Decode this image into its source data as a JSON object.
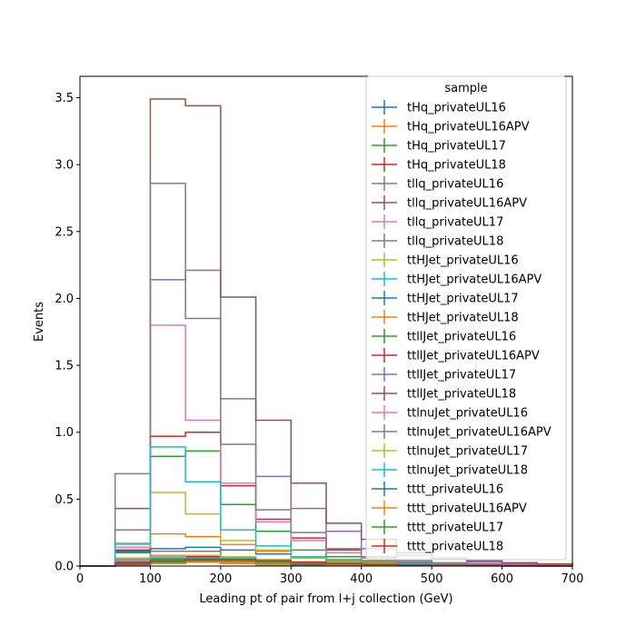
{
  "chart_data": {
    "type": "step-histogram",
    "xlabel": "Leading pt of pair from l+j collection (GeV)",
    "ylabel": "Events",
    "xlim": [
      0,
      700
    ],
    "ylim": [
      0,
      3.66
    ],
    "xticks": [
      0,
      100,
      200,
      300,
      400,
      500,
      600,
      700
    ],
    "yticks": [
      "0.0",
      "0.5",
      "1.0",
      "1.5",
      "2.0",
      "2.5",
      "3.0",
      "3.5"
    ],
    "grid": false,
    "legend": {
      "title": "sample",
      "placement": "top-right"
    },
    "bin_edges": [
      0,
      50,
      100,
      150,
      200,
      250,
      300,
      350,
      400,
      450,
      500,
      550,
      600,
      650,
      700
    ],
    "series": [
      {
        "name": "tHq_privateUL16",
        "color": "#1f77b4",
        "values": [
          0,
          0.02,
          0.03,
          0.03,
          0.02,
          0.01,
          0.01,
          0.005,
          0.004,
          0.003,
          0.002,
          0.001,
          0.001,
          0.001
        ]
      },
      {
        "name": "tHq_privateUL16APV",
        "color": "#ff7f0e",
        "values": [
          0,
          0.02,
          0.03,
          0.03,
          0.02,
          0.01,
          0.01,
          0.005,
          0.004,
          0.003,
          0.002,
          0.001,
          0.001,
          0.001
        ]
      },
      {
        "name": "tHq_privateUL17",
        "color": "#2ca02c",
        "values": [
          0,
          0.03,
          0.05,
          0.05,
          0.03,
          0.02,
          0.01,
          0.008,
          0.005,
          0.004,
          0.003,
          0.002,
          0.001,
          0.001
        ]
      },
      {
        "name": "tHq_privateUL18",
        "color": "#d62728",
        "values": [
          0,
          0.04,
          0.07,
          0.07,
          0.04,
          0.03,
          0.02,
          0.01,
          0.007,
          0.005,
          0.004,
          0.003,
          0.002,
          0.001
        ]
      },
      {
        "name": "tllq_privateUL16",
        "color": "#9467bd",
        "values": [
          0,
          0.03,
          0.06,
          0.06,
          0.04,
          0.02,
          0.01,
          0.008,
          0.005,
          0.004,
          0.003,
          0.002,
          0.001,
          0.001
        ]
      },
      {
        "name": "tllq_privateUL16APV",
        "color": "#8c564b",
        "values": [
          0,
          0.03,
          0.06,
          0.06,
          0.04,
          0.02,
          0.01,
          0.008,
          0.005,
          0.004,
          0.003,
          0.002,
          0.001,
          0.001
        ]
      },
      {
        "name": "tllq_privateUL17",
        "color": "#e377c2",
        "values": [
          0,
          0.04,
          0.08,
          0.08,
          0.05,
          0.03,
          0.02,
          0.01,
          0.006,
          0.004,
          0.003,
          0.002,
          0.001,
          0.001
        ]
      },
      {
        "name": "tllq_privateUL18",
        "color": "#7f7f7f",
        "values": [
          0,
          0.05,
          0.11,
          0.11,
          0.07,
          0.04,
          0.02,
          0.01,
          0.008,
          0.006,
          0.004,
          0.003,
          0.002,
          0.001
        ]
      },
      {
        "name": "ttHJet_privateUL16",
        "color": "#bcbd22",
        "values": [
          0,
          0.06,
          0.07,
          0.08,
          0.07,
          0.05,
          0.03,
          0.02,
          0.015,
          0.01,
          0.007,
          0.005,
          0.004,
          0.003
        ]
      },
      {
        "name": "ttHJet_privateUL16APV",
        "color": "#17becf",
        "values": [
          0,
          0.05,
          0.06,
          0.06,
          0.06,
          0.04,
          0.03,
          0.02,
          0.012,
          0.008,
          0.006,
          0.004,
          0.003,
          0.002
        ]
      },
      {
        "name": "ttHJet_privateUL17",
        "color": "#1f77b4",
        "values": [
          0,
          0.11,
          0.13,
          0.14,
          0.12,
          0.09,
          0.06,
          0.04,
          0.025,
          0.016,
          0.011,
          0.008,
          0.005,
          0.004
        ]
      },
      {
        "name": "ttHJet_privateUL18",
        "color": "#ff7f0e",
        "values": [
          0,
          0.14,
          0.24,
          0.22,
          0.16,
          0.11,
          0.07,
          0.05,
          0.03,
          0.02,
          0.014,
          0.01,
          0.007,
          0.005
        ]
      },
      {
        "name": "ttllJet_privateUL16",
        "color": "#2ca02c",
        "values": [
          0,
          0.1,
          0.82,
          0.86,
          0.46,
          0.26,
          0.12,
          0.07,
          0.04,
          0.025,
          0.016,
          0.01,
          0.007,
          0.005
        ]
      },
      {
        "name": "ttllJet_privateUL16APV",
        "color": "#d62728",
        "values": [
          0,
          0.12,
          0.97,
          1.0,
          0.6,
          0.35,
          0.21,
          0.12,
          0.06,
          0.035,
          0.022,
          0.014,
          0.009,
          0.006
        ]
      },
      {
        "name": "ttllJet_privateUL17",
        "color": "#9467bd",
        "values": [
          0,
          0.27,
          2.14,
          2.21,
          1.25,
          0.67,
          0.43,
          0.26,
          0.13,
          0.08,
          0.05,
          0.03,
          0.02,
          0.013
        ]
      },
      {
        "name": "ttllJet_privateUL18",
        "color": "#8c564b",
        "values": [
          0,
          0.43,
          3.49,
          3.44,
          2.01,
          1.09,
          0.62,
          0.32,
          0.2,
          0.1,
          0.06,
          0.04,
          0.025,
          0.016
        ]
      },
      {
        "name": "ttlnuJet_privateUL16",
        "color": "#e377c2",
        "values": [
          0,
          0.14,
          1.8,
          1.09,
          0.62,
          0.33,
          0.19,
          0.1,
          0.06,
          0.035,
          0.022,
          0.014,
          0.009,
          0.006
        ]
      },
      {
        "name": "ttlnuJet_privateUL16APV",
        "color": "#7f7f7f",
        "values": [
          0,
          0.69,
          2.86,
          1.85,
          0.91,
          0.42,
          0.25,
          0.13,
          0.07,
          0.04,
          0.025,
          0.016,
          0.01,
          0.007
        ]
      },
      {
        "name": "ttlnuJet_privateUL17",
        "color": "#bcbd22",
        "values": [
          0,
          0.16,
          0.55,
          0.39,
          0.19,
          0.12,
          0.06,
          0.03,
          0.02,
          0.012,
          0.008,
          0.005,
          0.003,
          0.002
        ]
      },
      {
        "name": "ttlnuJet_privateUL18",
        "color": "#17becf",
        "values": [
          0,
          0.17,
          0.89,
          0.63,
          0.27,
          0.15,
          0.07,
          0.04,
          0.025,
          0.015,
          0.01,
          0.006,
          0.004,
          0.003
        ]
      },
      {
        "name": "tttt_privateUL16",
        "color": "#1f77b4",
        "values": [
          0,
          0.01,
          0.02,
          0.03,
          0.03,
          0.02,
          0.02,
          0.01,
          0.008,
          0.005,
          0.004,
          0.003,
          0.002,
          0.001
        ]
      },
      {
        "name": "tttt_privateUL16APV",
        "color": "#ff7f0e",
        "values": [
          0,
          0.01,
          0.02,
          0.03,
          0.03,
          0.02,
          0.02,
          0.01,
          0.008,
          0.005,
          0.004,
          0.003,
          0.002,
          0.001
        ]
      },
      {
        "name": "tttt_privateUL17",
        "color": "#2ca02c",
        "values": [
          0,
          0.01,
          0.03,
          0.04,
          0.04,
          0.03,
          0.02,
          0.015,
          0.01,
          0.007,
          0.005,
          0.003,
          0.002,
          0.001
        ]
      },
      {
        "name": "tttt_privateUL18",
        "color": "#d62728",
        "values": [
          0,
          0.02,
          0.04,
          0.05,
          0.05,
          0.04,
          0.03,
          0.02,
          0.012,
          0.008,
          0.006,
          0.004,
          0.003,
          0.002
        ]
      }
    ]
  }
}
